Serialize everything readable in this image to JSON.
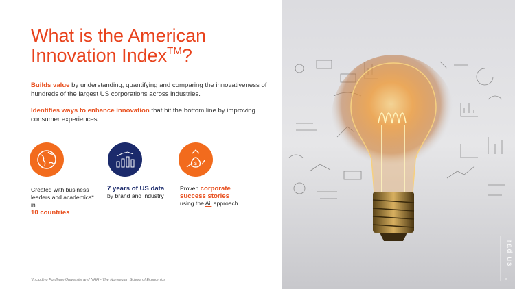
{
  "title": {
    "text": "What is the American Innovation Index",
    "superscript": "TM",
    "end": "?"
  },
  "paragraphs": [
    {
      "highlight": "Builds value",
      "text": " by understanding, quantifying and comparing the innovativeness of hundreds of the largest US corporations across industries."
    },
    {
      "highlight": "Identifies ways to enhance innovation",
      "text": " that hit the bottom line by improving consumer experiences."
    }
  ],
  "features": [
    {
      "segments": [
        {
          "text": "Created with business leaders and academics* in "
        },
        {
          "text": "10 countries",
          "color": "#e8501f"
        }
      ]
    },
    {
      "segments": [
        {
          "text": "7 years of US data",
          "color": "#1b2a6b"
        },
        {
          "text": " by brand and industry"
        }
      ]
    },
    {
      "segments": [
        {
          "text": "Proven "
        },
        {
          "text": "corporate success stories",
          "color": "#e8501f"
        },
        {
          "text": " using the "
        },
        {
          "text": "Aii"
        },
        {
          "text": " approach"
        }
      ]
    }
  ],
  "footnote": "*Including Fordham University and NHH - The Norwegian School of Economics",
  "logo": "radius",
  "page_number": "5"
}
